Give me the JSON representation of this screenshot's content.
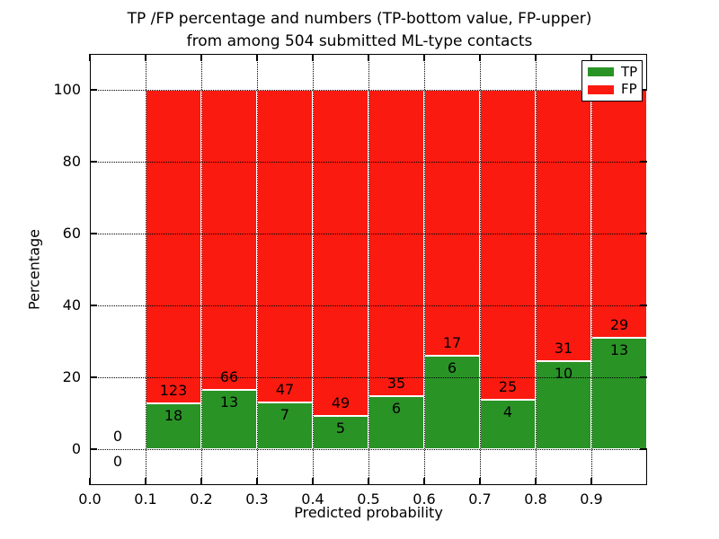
{
  "figure": {
    "title_line1": "TP /FP percentage and numbers (TP-bottom value, FP-upper)",
    "title_line2": "from among 504 submitted ML-type contacts",
    "xlabel": "Predicted probability",
    "ylabel": "Percentage",
    "background": "#ffffff"
  },
  "legend": {
    "items": [
      {
        "label": "TP",
        "color": "#2a9326"
      },
      {
        "label": "FP",
        "color": "#fb1a10"
      }
    ]
  },
  "chart_data": {
    "type": "bar",
    "stacked": true,
    "normalized_to_percent": true,
    "title": "TP /FP percentage and numbers (TP-bottom value, FP-upper) from among 504 submitted ML-type contacts",
    "xlabel": "Predicted probability",
    "ylabel": "Percentage",
    "total_contacts": 504,
    "bin_width": 0.1,
    "bin_starts": [
      0.0,
      0.1,
      0.2,
      0.3,
      0.4,
      0.5,
      0.6,
      0.7,
      0.8,
      0.9
    ],
    "series": [
      {
        "name": "TP",
        "color": "#2a9326",
        "counts": [
          0,
          18,
          13,
          7,
          5,
          6,
          6,
          4,
          10,
          13
        ]
      },
      {
        "name": "FP",
        "color": "#fb1a10",
        "counts": [
          0,
          123,
          66,
          47,
          49,
          35,
          17,
          25,
          31,
          29
        ]
      }
    ],
    "tp_percent_per_bin": [
      0,
      12.77,
      16.46,
      12.96,
      9.26,
      14.63,
      26.09,
      13.79,
      24.39,
      30.95
    ],
    "xlim": [
      0.0,
      1.0
    ],
    "ylim": [
      -10,
      110
    ],
    "xticks": [
      "0.0",
      "0.1",
      "0.2",
      "0.3",
      "0.4",
      "0.5",
      "0.6",
      "0.7",
      "0.8",
      "0.9"
    ],
    "yticks": [
      "0",
      "20",
      "40",
      "60",
      "80",
      "100"
    ],
    "grid": "dotted black, drawn above bars",
    "bar_edge_color": "#ffffff",
    "legend_position": "upper right"
  }
}
